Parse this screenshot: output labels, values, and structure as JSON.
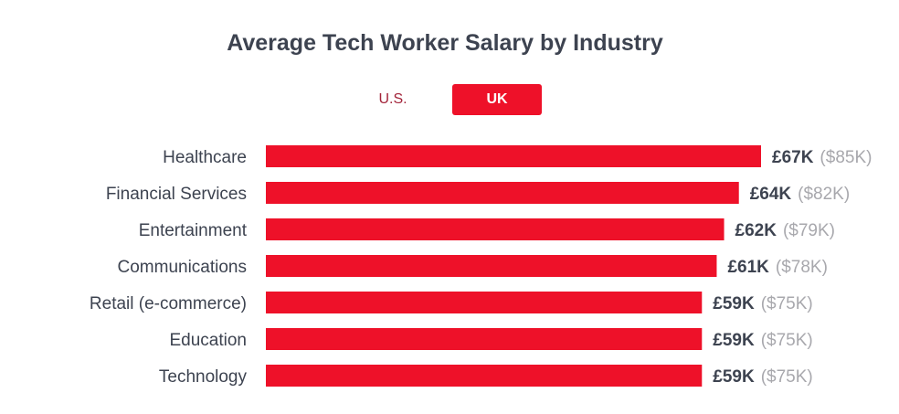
{
  "toggle": {
    "us_label": "U.S.",
    "uk_label": "UK",
    "active": "UK"
  },
  "colors": {
    "bar": "#ee1129",
    "text": "#3d4350",
    "muted": "#a8a8ad"
  },
  "chart_data": {
    "type": "bar",
    "orientation": "horizontal",
    "title": "Average Tech Worker Salary by Industry",
    "categories": [
      "Healthcare",
      "Financial Services",
      "Entertainment",
      "Communications",
      "Retail (e-commerce)",
      "Education",
      "Technology"
    ],
    "values": [
      67,
      64,
      62,
      61,
      59,
      59,
      59
    ],
    "value_labels": [
      "£67K",
      "£64K",
      "£62K",
      "£61K",
      "£59K",
      "£59K",
      "£59K"
    ],
    "usd_labels": [
      "($85K)",
      "($82K)",
      "($79K)",
      "($78K)",
      "($75K)",
      "($75K)",
      "($75K)"
    ],
    "unit": "£K",
    "xlim": [
      0,
      67
    ],
    "grid": false
  }
}
